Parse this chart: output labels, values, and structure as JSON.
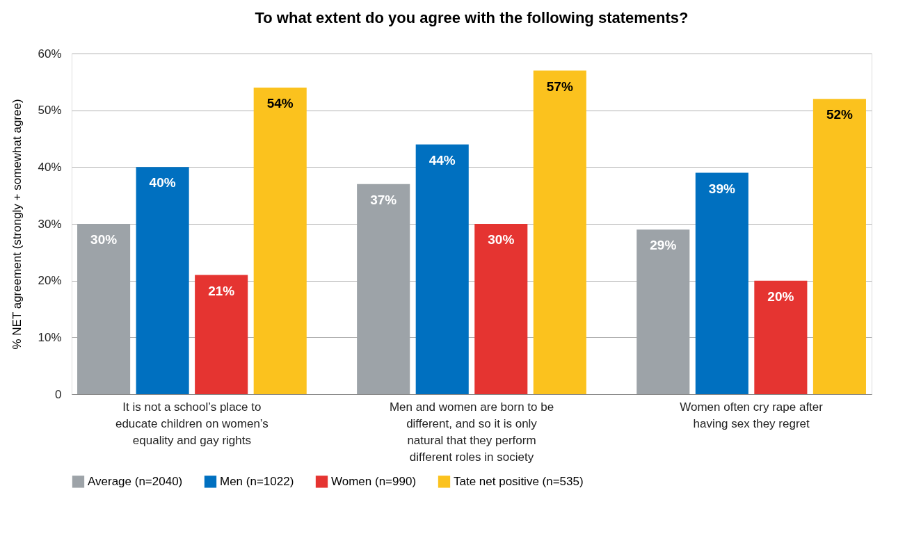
{
  "chart_data": {
    "type": "bar",
    "title": "To what extent do you agree with the following statements?",
    "ylabel": "% NET agreement (strongly + somewhat agree)",
    "categories": [
      "It is not a school’s place to educate children on women’s equality and gay rights",
      "Men and women are born to be different, and so it is only natural that they perform different roles in society",
      "Women often cry rape after having sex they regret"
    ],
    "series": [
      {
        "name": "Average (n=2040)",
        "color": "#9da3a8",
        "values": [
          30,
          37,
          29
        ],
        "value_labels": [
          "30%",
          "37%",
          "29%"
        ]
      },
      {
        "name": "Men (n=1022)",
        "color": "#0070c0",
        "values": [
          40,
          44,
          39
        ],
        "value_labels": [
          "40%",
          "44%",
          "39%"
        ]
      },
      {
        "name": "Women (n=990)",
        "color": "#e53431",
        "values": [
          21,
          30,
          20
        ],
        "value_labels": [
          "21%",
          "30%",
          "20%"
        ]
      },
      {
        "name": "Tate net positive (n=535)",
        "color": "#fbc21e",
        "values": [
          54,
          57,
          52
        ],
        "value_labels": [
          "54%",
          "57%",
          "52%"
        ]
      }
    ],
    "ylim": [
      0,
      60
    ],
    "yticks": [
      {
        "value": 0,
        "label": "0"
      },
      {
        "value": 10,
        "label": "10%"
      },
      {
        "value": 20,
        "label": "20%"
      },
      {
        "value": 30,
        "label": "30%"
      },
      {
        "value": 40,
        "label": "40%"
      },
      {
        "value": 50,
        "label": "50%"
      },
      {
        "value": 60,
        "label": "60%"
      }
    ],
    "grid": "y",
    "legend": "bottom"
  }
}
